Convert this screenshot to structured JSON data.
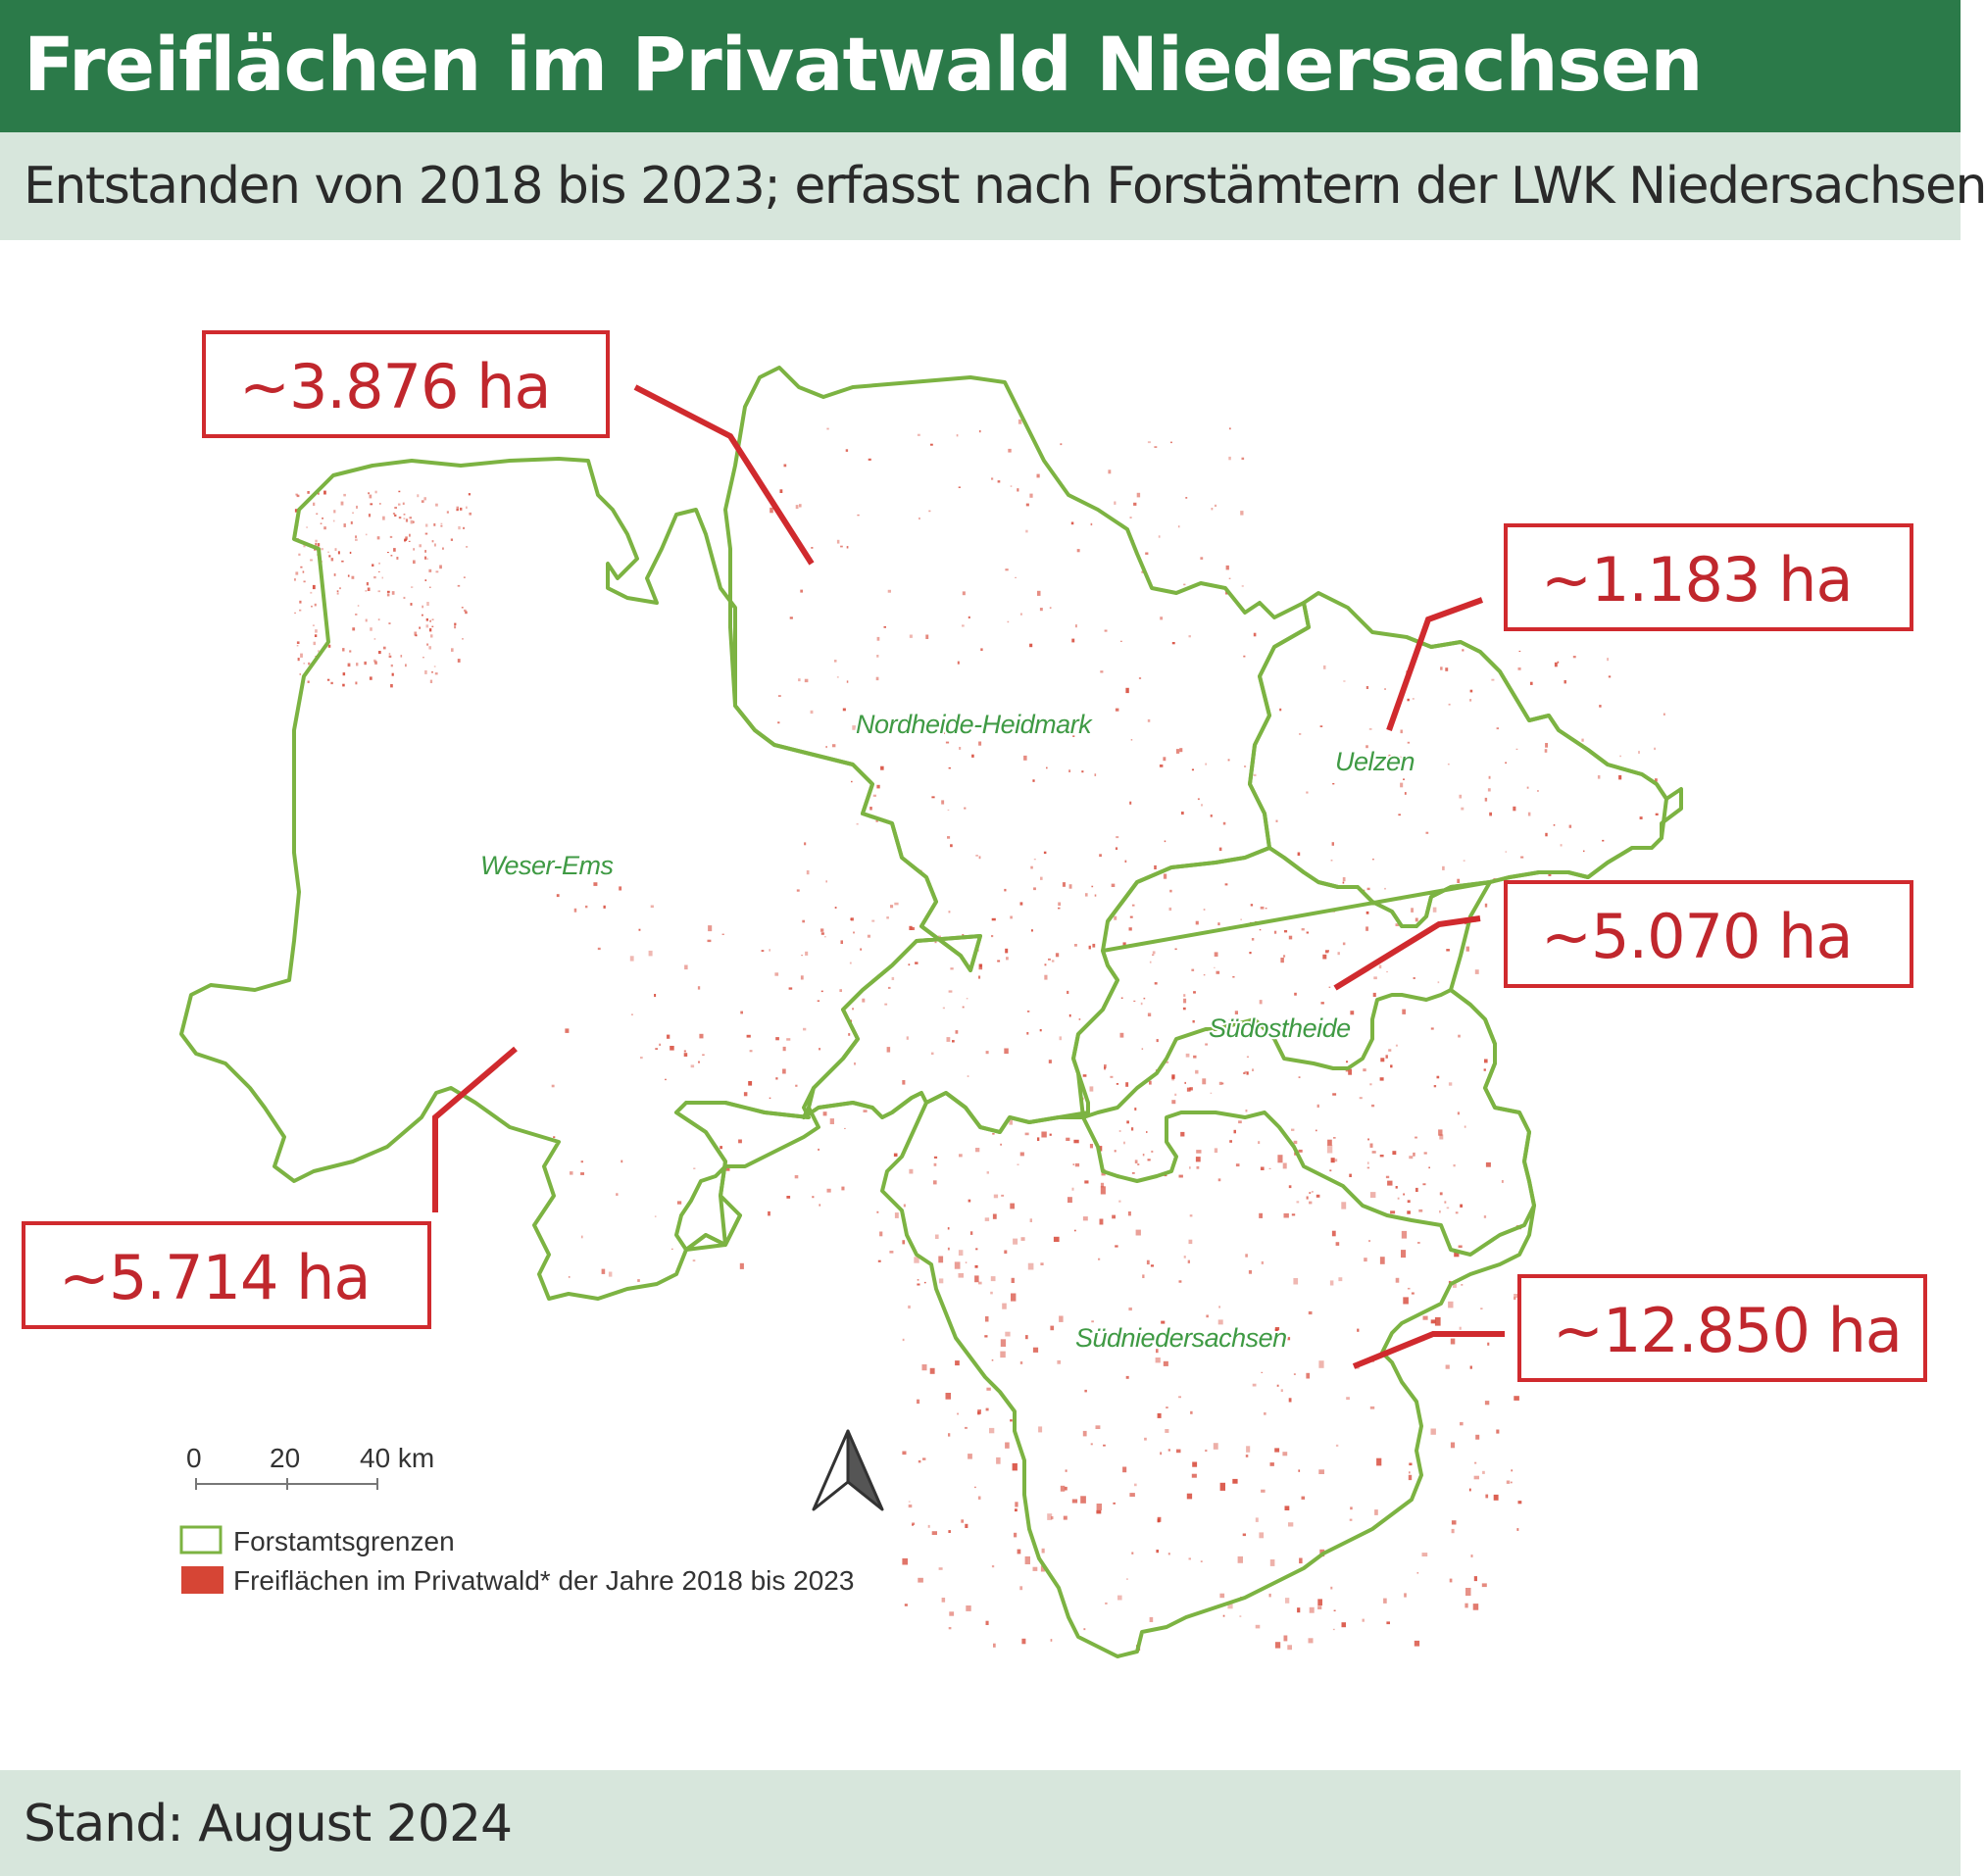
{
  "header": {
    "title": "Freiflächen im Privatwald Niedersachsen",
    "subtitle": "Entstanden von 2018 bis 2023; erfasst nach Forstämtern der LWK Niedersachsen"
  },
  "map": {
    "regions": [
      {
        "id": "weser-ems",
        "name": "Weser-Ems",
        "area": "~5.714 ha"
      },
      {
        "id": "nordheide-heidmark",
        "name": "Nordheide-Heidmark",
        "area": "~3.876 ha"
      },
      {
        "id": "uelzen",
        "name": "Uelzen",
        "area": "~1.183 ha"
      },
      {
        "id": "suedostheide",
        "name": "Südostheide",
        "area": "~5.070 ha"
      },
      {
        "id": "suedniedersachsen",
        "name": "Südniedersachsen",
        "area": "~12.850 ha"
      }
    ],
    "scale": {
      "tick0": "0",
      "tick1": "20",
      "tick2": "40 km"
    },
    "north_arrow": "north-arrow-icon",
    "legend": [
      {
        "label": "Forstamtsgrenzen",
        "color": "#7cb342"
      },
      {
        "label": "Freiflächen im Privatwald* der Jahre 2018 bis 2023",
        "color": "#d64535"
      }
    ],
    "colors": {
      "boundary": "#7cb342",
      "clearing": "#d64535",
      "callout": "#d02a2e"
    }
  },
  "footer": {
    "status": "Stand: August 2024"
  }
}
